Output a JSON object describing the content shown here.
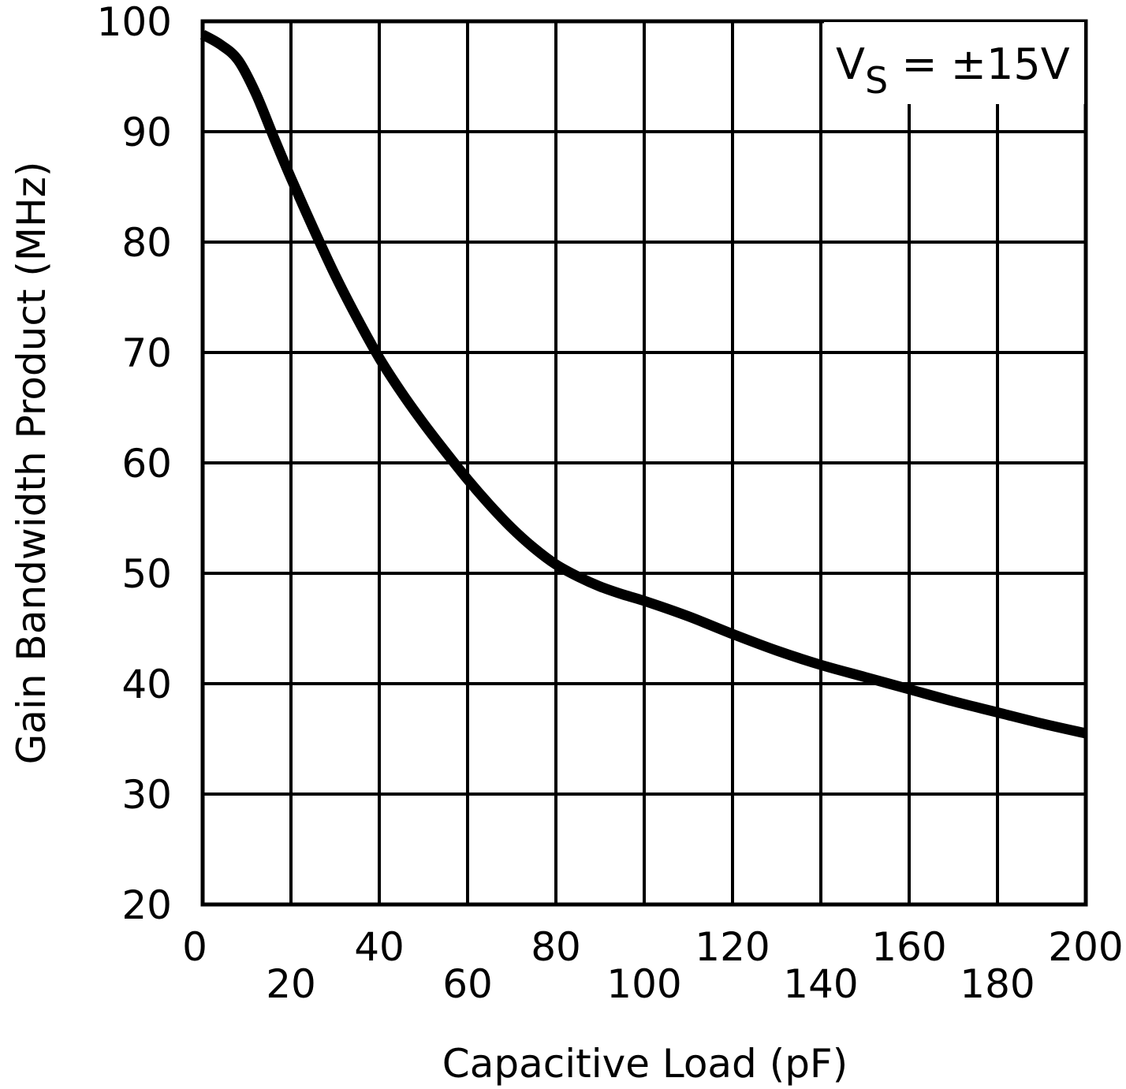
{
  "chart_data": {
    "type": "line",
    "title": "",
    "xlabel": "Capacitive Load (pF)",
    "ylabel": "Gain Bandwidth Product (MHz)",
    "xlim": [
      0,
      200
    ],
    "ylim": [
      20,
      100
    ],
    "x_ticks": [
      0,
      20,
      40,
      60,
      80,
      100,
      120,
      140,
      160,
      180,
      200
    ],
    "x_tick_labels": [
      "0",
      "20",
      "40",
      "60",
      "80",
      "100",
      "120",
      "140",
      "160",
      "180",
      "200"
    ],
    "y_ticks": [
      20,
      30,
      40,
      50,
      60,
      70,
      80,
      90,
      100
    ],
    "y_tick_labels": [
      "20",
      "30",
      "40",
      "50",
      "60",
      "70",
      "80",
      "90",
      "100"
    ],
    "grid": true,
    "annotation": {
      "main": "V",
      "sub": "S",
      "rest": " = ±15V"
    },
    "series": [
      {
        "name": "VS = ±15V",
        "x": [
          0,
          4,
          8,
          12,
          16,
          20,
          25,
          30,
          35,
          40,
          45,
          50,
          55,
          60,
          65,
          70,
          75,
          80,
          85,
          90,
          95,
          100,
          110,
          120,
          130,
          140,
          150,
          160,
          170,
          180,
          190,
          200
        ],
        "y": [
          98.8,
          97.9,
          96.5,
          93.5,
          89.6,
          85.8,
          81.3,
          77.0,
          73.1,
          69.5,
          66.4,
          63.6,
          61.0,
          58.5,
          56.2,
          54.1,
          52.3,
          50.8,
          49.7,
          48.8,
          48.1,
          47.5,
          46.1,
          44.5,
          43.0,
          41.7,
          40.6,
          39.5,
          38.4,
          37.4,
          36.4,
          35.5
        ]
      }
    ]
  }
}
